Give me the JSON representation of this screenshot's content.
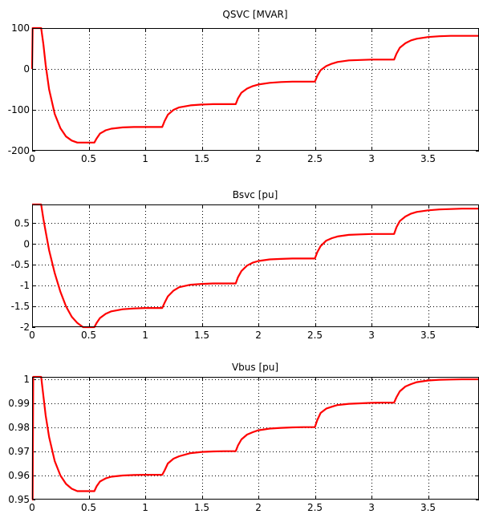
{
  "chart_data": [
    {
      "type": "line",
      "title": "QSVC [MVAR]",
      "xlim": [
        0,
        3.95
      ],
      "ylim": [
        -200,
        100
      ],
      "xticks": [
        0,
        0.5,
        1,
        1.5,
        2,
        2.5,
        3,
        3.5
      ],
      "xtick_labels": [
        "0",
        "0.5",
        "1",
        "1.5",
        "2",
        "2.5",
        "3",
        "3.5"
      ],
      "yticks": [
        -200,
        -100,
        0,
        100
      ],
      "ytick_labels": [
        "-200",
        "-100",
        "0",
        "100"
      ],
      "grid": true,
      "line_color": "#ff0000",
      "x": [
        0,
        0.005,
        0.02,
        0.05,
        0.08,
        0.1,
        0.12,
        0.15,
        0.2,
        0.25,
        0.3,
        0.35,
        0.4,
        0.45,
        0.5,
        0.55,
        0.57,
        0.6,
        0.65,
        0.7,
        0.8,
        0.9,
        1.0,
        1.1,
        1.15,
        1.17,
        1.2,
        1.25,
        1.3,
        1.4,
        1.5,
        1.6,
        1.7,
        1.8,
        1.82,
        1.85,
        1.9,
        1.95,
        2.0,
        2.1,
        2.2,
        2.3,
        2.4,
        2.5,
        2.52,
        2.55,
        2.6,
        2.65,
        2.7,
        2.8,
        2.9,
        3.0,
        3.1,
        3.2,
        3.22,
        3.25,
        3.3,
        3.35,
        3.4,
        3.5,
        3.6,
        3.7,
        3.8,
        3.95
      ],
      "y": [
        0,
        100,
        100,
        100,
        100,
        60,
        10,
        -50,
        -110,
        -145,
        -165,
        -175,
        -180,
        -180,
        -180,
        -180,
        -170,
        -158,
        -150,
        -146,
        -143,
        -142,
        -142,
        -142,
        -142,
        -128,
        -112,
        -100,
        -94,
        -89,
        -87,
        -86,
        -86,
        -86,
        -72,
        -58,
        -48,
        -42,
        -38,
        -34,
        -32,
        -31,
        -31,
        -31,
        -17,
        -3,
        7,
        13,
        17,
        21,
        22,
        23,
        23,
        23,
        37,
        52,
        63,
        70,
        74,
        78,
        80,
        81,
        81,
        81
      ]
    },
    {
      "type": "line",
      "title": "Bsvc [pu]",
      "xlim": [
        0,
        3.95
      ],
      "ylim": [
        -2,
        0.95
      ],
      "xticks": [
        0,
        0.5,
        1,
        1.5,
        2,
        2.5,
        3,
        3.5
      ],
      "xtick_labels": [
        "0",
        "0.5",
        "1",
        "1.5",
        "2",
        "2.5",
        "3",
        "3.5"
      ],
      "yticks": [
        -2,
        -1.5,
        -1,
        -0.5,
        0,
        0.5
      ],
      "ytick_labels": [
        "-2",
        "-1.5",
        "-1",
        "-0.5",
        "0",
        "0.5"
      ],
      "grid": true,
      "line_color": "#ff0000",
      "x": [
        0,
        0.02,
        0.05,
        0.08,
        0.1,
        0.12,
        0.15,
        0.2,
        0.25,
        0.3,
        0.35,
        0.4,
        0.45,
        0.5,
        0.55,
        0.57,
        0.6,
        0.65,
        0.7,
        0.8,
        0.9,
        1.0,
        1.1,
        1.15,
        1.17,
        1.2,
        1.25,
        1.3,
        1.4,
        1.5,
        1.6,
        1.7,
        1.8,
        1.82,
        1.85,
        1.9,
        1.95,
        2.0,
        2.1,
        2.2,
        2.3,
        2.4,
        2.5,
        2.52,
        2.55,
        2.6,
        2.65,
        2.7,
        2.8,
        2.9,
        3.0,
        3.1,
        3.2,
        3.22,
        3.25,
        3.3,
        3.35,
        3.4,
        3.5,
        3.6,
        3.7,
        3.8,
        3.95
      ],
      "y": [
        0.95,
        0.95,
        0.95,
        0.95,
        0.6,
        0.3,
        -0.15,
        -0.7,
        -1.15,
        -1.5,
        -1.75,
        -1.9,
        -2.0,
        -2.0,
        -2.0,
        -1.9,
        -1.78,
        -1.68,
        -1.62,
        -1.57,
        -1.55,
        -1.54,
        -1.54,
        -1.54,
        -1.42,
        -1.26,
        -1.12,
        -1.04,
        -0.98,
        -0.96,
        -0.95,
        -0.95,
        -0.95,
        -0.8,
        -0.65,
        -0.52,
        -0.45,
        -0.41,
        -0.37,
        -0.36,
        -0.35,
        -0.35,
        -0.35,
        -0.2,
        -0.05,
        0.08,
        0.14,
        0.18,
        0.22,
        0.23,
        0.24,
        0.24,
        0.24,
        0.4,
        0.55,
        0.66,
        0.73,
        0.77,
        0.81,
        0.83,
        0.84,
        0.85,
        0.85
      ]
    },
    {
      "type": "line",
      "title": "Vbus [pu]",
      "xlim": [
        0,
        3.95
      ],
      "ylim": [
        0.95,
        1.001
      ],
      "xticks": [
        0,
        0.5,
        1,
        1.5,
        2,
        2.5,
        3,
        3.5
      ],
      "xtick_labels": [
        "0",
        "0.5",
        "1",
        "1.5",
        "2",
        "2.5",
        "3",
        "3.5"
      ],
      "yticks": [
        0.95,
        0.96,
        0.97,
        0.98,
        0.99,
        1
      ],
      "ytick_labels": [
        "0.95",
        "0.96",
        "0.97",
        "0.98",
        "0.99",
        "1"
      ],
      "grid": true,
      "line_color": "#ff0000",
      "x": [
        0,
        0.005,
        0.01,
        0.02,
        0.05,
        0.08,
        0.1,
        0.12,
        0.15,
        0.2,
        0.25,
        0.3,
        0.35,
        0.4,
        0.45,
        0.5,
        0.55,
        0.57,
        0.6,
        0.65,
        0.7,
        0.8,
        0.9,
        1.0,
        1.1,
        1.15,
        1.17,
        1.2,
        1.25,
        1.3,
        1.4,
        1.5,
        1.6,
        1.7,
        1.8,
        1.82,
        1.85,
        1.9,
        1.95,
        2.0,
        2.1,
        2.2,
        2.3,
        2.4,
        2.5,
        2.52,
        2.55,
        2.6,
        2.65,
        2.7,
        2.8,
        2.9,
        3.0,
        3.1,
        3.2,
        3.22,
        3.25,
        3.3,
        3.35,
        3.4,
        3.5,
        3.6,
        3.7,
        3.8,
        3.95
      ],
      "y": [
        0.95,
        0.95,
        1.001,
        1.001,
        1.001,
        1.001,
        0.993,
        0.985,
        0.976,
        0.966,
        0.96,
        0.9565,
        0.9545,
        0.9535,
        0.9535,
        0.9535,
        0.9535,
        0.9555,
        0.9575,
        0.9588,
        0.9595,
        0.96,
        0.9602,
        0.9603,
        0.9603,
        0.9603,
        0.962,
        0.965,
        0.967,
        0.968,
        0.9693,
        0.9698,
        0.97,
        0.9701,
        0.9701,
        0.9725,
        0.975,
        0.977,
        0.978,
        0.9788,
        0.9795,
        0.9798,
        0.98,
        0.9801,
        0.9801,
        0.983,
        0.986,
        0.9878,
        0.9886,
        0.9893,
        0.9898,
        0.99,
        0.9902,
        0.9903,
        0.9903,
        0.9925,
        0.995,
        0.997,
        0.998,
        0.9988,
        0.9995,
        0.9998,
        0.9999,
        1.0,
        1.0
      ]
    }
  ]
}
